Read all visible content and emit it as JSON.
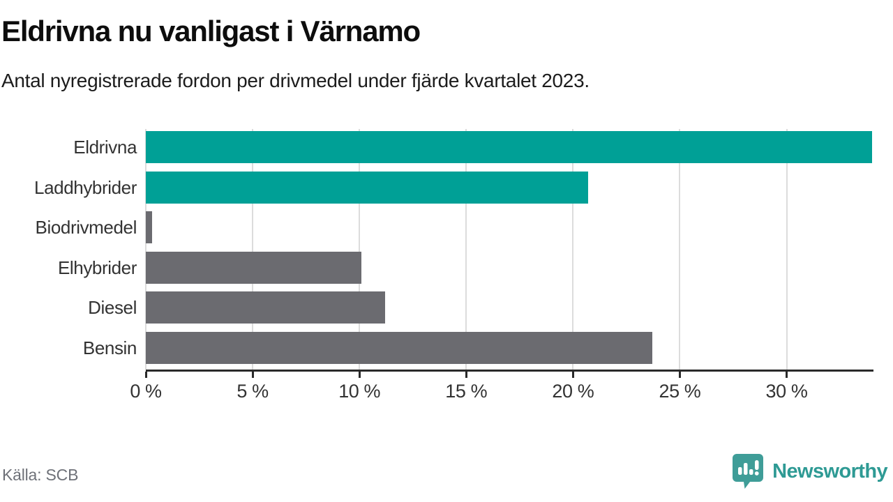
{
  "header": {
    "title": "Eldrivna nu vanligast i Värnamo",
    "subtitle": "Antal nyregistrerade fordon per drivmedel under fjärde kvartalet 2023."
  },
  "chart_data": {
    "type": "bar",
    "orientation": "horizontal",
    "title": "Eldrivna nu vanligast i Värnamo",
    "subtitle": "Antal nyregistrerade fordon per drivmedel under fjärde kvartalet 2023.",
    "categories": [
      "Eldrivna",
      "Laddhybrider",
      "Biodrivmedel",
      "Elhybrider",
      "Diesel",
      "Bensin"
    ],
    "values": [
      34.0,
      20.7,
      0.3,
      10.1,
      11.2,
      23.7
    ],
    "unit": "%",
    "xlim": [
      0,
      34
    ],
    "x_tick_values": [
      0,
      5,
      10,
      15,
      20,
      25,
      30
    ],
    "x_tick_labels": [
      "0 %",
      "5 %",
      "10 %",
      "15 %",
      "20 %",
      "25 %",
      "30 %"
    ],
    "bar_colors": [
      "#00a096",
      "#00a096",
      "#6b6b70",
      "#6b6b70",
      "#6b6b70",
      "#6b6b70"
    ],
    "highlight_color": "#00a096",
    "default_color": "#6b6b70",
    "gridline_color": "#dcdcdc",
    "axis_color": "#2a2a2a",
    "grid": true,
    "legend": "none"
  },
  "footer": {
    "source": "Källa: SCB",
    "brand": "Newsworthy",
    "brand_color": "#2e9a94",
    "brand_icon": "speech-bubble-bar-chart-exclamation",
    "brand_icon_color": "#3f9d98"
  }
}
